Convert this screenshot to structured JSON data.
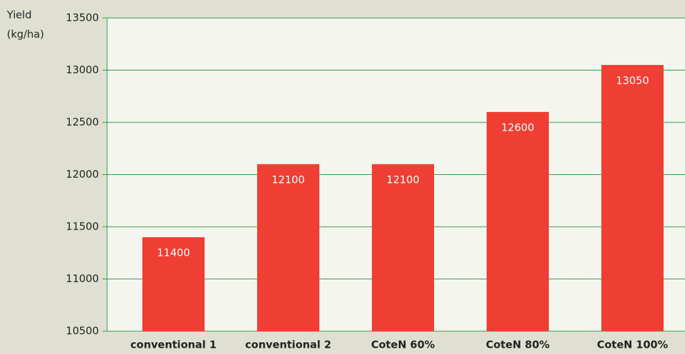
{
  "chart_data": {
    "type": "bar",
    "y_label": [
      "Yield",
      "(kg/ha)"
    ],
    "categories": [
      "conventional 1",
      "conventional 2",
      "CoteN 60%",
      "CoteN 80%",
      "CoteN 100%"
    ],
    "values": [
      11400,
      12100,
      12100,
      12600,
      13050
    ],
    "color": "#ef3e33",
    "ylim": [
      10500,
      13500
    ],
    "yticks": [
      10500,
      11000,
      11500,
      12000,
      12500,
      13000,
      13500
    ],
    "grid": true,
    "grid_color": "#2e9a4a"
  }
}
